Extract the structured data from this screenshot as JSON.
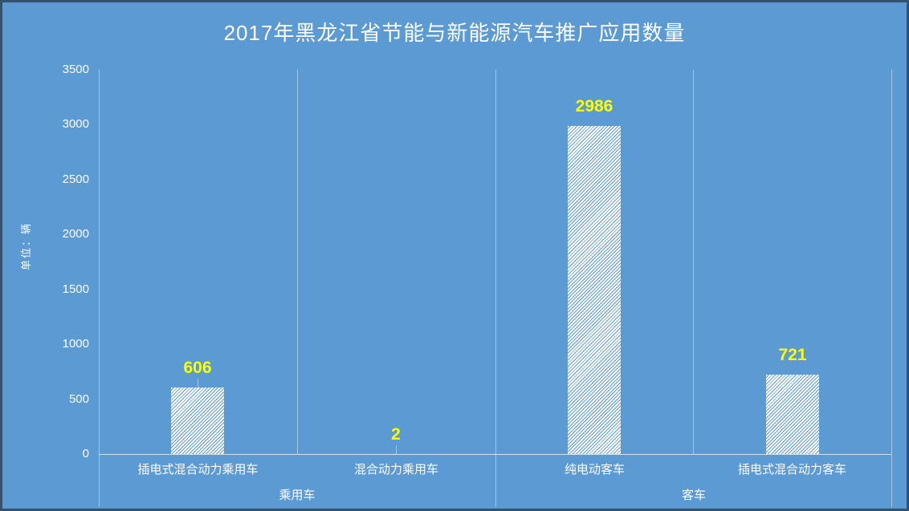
{
  "title": "2017年黑龙江省节能与新能源汽车推广应用数量",
  "chart_data": {
    "type": "bar",
    "title": "2017年黑龙江省节能与新能源汽车推广应用数量",
    "xlabel": "",
    "ylabel": "单位：辆",
    "categories": [
      "插电式混合动力乘用车",
      "混合动力乘用车",
      "纯电动客车",
      "插电式混合动力客车"
    ],
    "values": [
      606,
      2,
      2986,
      721
    ],
    "groups": [
      {
        "label": "乘用车",
        "span": [
          0,
          1
        ]
      },
      {
        "label": "客车",
        "span": [
          2,
          3
        ]
      }
    ],
    "ylim": [
      0,
      3500
    ],
    "y_ticks": [
      0,
      500,
      1000,
      1500,
      2000,
      2500,
      3000,
      3500
    ],
    "grid": false,
    "legend": "none",
    "bar_fill": "white-diagonal-hatch",
    "label_leader_lines": [
      true,
      true,
      false,
      false
    ],
    "colors": {
      "background": "#5b9ad3",
      "border": "#33526e",
      "text": "#ffffff",
      "data_label": "#ffff00",
      "hatch": "#ffffff",
      "separator": "rgba(255,255,255,0.45)",
      "axis_line": "rgba(255,255,255,0.7)"
    }
  }
}
